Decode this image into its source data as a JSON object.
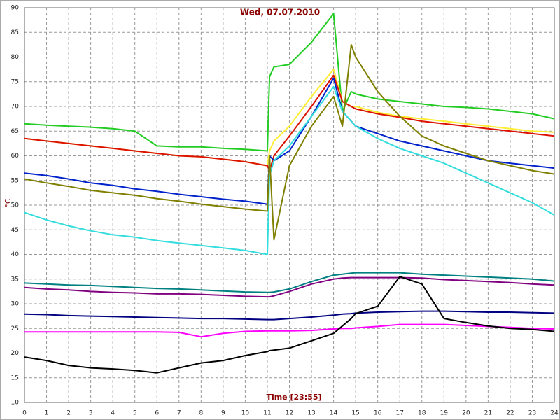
{
  "chart_data": {
    "type": "line",
    "title": "Wed, 07.07.2010",
    "y_label": "°C",
    "x_label": "Time [23:55]",
    "x": [
      0,
      1,
      2,
      3,
      4,
      5,
      6,
      7,
      8,
      9,
      10,
      11,
      11.1,
      11.3,
      12,
      13,
      14,
      14.4,
      14.8,
      15,
      16,
      17,
      18,
      19,
      20,
      21,
      22,
      23,
      24
    ],
    "xlim": [
      0,
      24
    ],
    "xticks": [
      0,
      1,
      2,
      3,
      4,
      5,
      6,
      7,
      8,
      9,
      10,
      11,
      12,
      13,
      14,
      15,
      16,
      17,
      18,
      19,
      20,
      21,
      22,
      23,
      24
    ],
    "ylim": [
      10,
      90
    ],
    "yticks": [
      10,
      15,
      20,
      25,
      30,
      35,
      40,
      45,
      50,
      55,
      60,
      65,
      70,
      75,
      80,
      85,
      90
    ],
    "grid": true,
    "series": [
      {
        "color": "#22cc22",
        "values": [
          66.5,
          66.2,
          66,
          65.8,
          65.5,
          65,
          62,
          61.8,
          61.8,
          61.5,
          61.3,
          61,
          76,
          78,
          78.5,
          83,
          88.8,
          69,
          73,
          72.5,
          71.5,
          71,
          70.5,
          70,
          69.8,
          69.5,
          69,
          68.5,
          67.5
        ]
      },
      {
        "color": "#ffee33",
        "values": [
          63.5,
          63,
          62.5,
          62,
          61.5,
          61,
          60.5,
          60,
          59.8,
          59.3,
          58.8,
          58,
          61,
          63,
          66,
          72,
          77.5,
          71,
          70,
          70,
          68.8,
          68,
          67.5,
          67,
          66.5,
          66,
          65.5,
          65,
          64.8
        ]
      },
      {
        "color": "#dd1100",
        "values": [
          63.5,
          63,
          62.5,
          62,
          61.5,
          61,
          60.5,
          60,
          59.8,
          59.3,
          58.8,
          58,
          57,
          60,
          64,
          70,
          76.3,
          71,
          70,
          69.5,
          68.5,
          67.8,
          67,
          66.5,
          66,
          65.5,
          65,
          64.5,
          64
        ]
      },
      {
        "color": "#0022cc",
        "values": [
          56.5,
          56,
          55.3,
          54.5,
          54,
          53.3,
          52.8,
          52.2,
          51.7,
          51.2,
          50.8,
          50.2,
          60,
          59,
          61,
          68,
          75.7,
          69,
          67,
          66,
          64.5,
          63,
          62,
          61,
          60,
          59,
          58.5,
          58,
          57.5
        ]
      },
      {
        "color": "#33dddd",
        "values": [
          48.5,
          47,
          45.8,
          44.8,
          44,
          43.5,
          42.8,
          42.3,
          41.8,
          41.3,
          40.8,
          40,
          56,
          59,
          62,
          68,
          74,
          69,
          67,
          66,
          63.5,
          61.5,
          60,
          58.5,
          56.5,
          54.5,
          52.5,
          50.5,
          48
        ]
      },
      {
        "color": "#808000",
        "values": [
          55.3,
          54.5,
          53.8,
          53,
          52.5,
          52,
          51.3,
          50.8,
          50.2,
          49.7,
          49.2,
          48.8,
          60,
          43,
          58,
          66,
          72,
          66,
          82.5,
          80,
          73,
          68,
          64,
          62,
          60.5,
          59,
          58,
          57,
          56.3
        ]
      },
      {
        "color": "#008080",
        "values": [
          34.2,
          34,
          33.8,
          33.7,
          33.5,
          33.3,
          33.1,
          33,
          32.8,
          32.6,
          32.4,
          32.3,
          32.3,
          32.4,
          33,
          34.5,
          35.8,
          36,
          36.2,
          36.3,
          36.3,
          36.3,
          36,
          35.8,
          35.6,
          35.4,
          35.2,
          35,
          34.6
        ]
      },
      {
        "color": "#800080",
        "values": [
          33.3,
          33,
          32.8,
          32.5,
          32.3,
          32.2,
          32,
          32,
          31.9,
          31.7,
          31.5,
          31.4,
          31.4,
          31.6,
          32.5,
          34,
          35,
          35.2,
          35.3,
          35.3,
          35.3,
          35.3,
          35.2,
          34.9,
          34.7,
          34.5,
          34.3,
          34,
          33.8
        ]
      },
      {
        "color": "#000080",
        "values": [
          27.9,
          27.8,
          27.6,
          27.5,
          27.4,
          27.3,
          27.2,
          27.1,
          27,
          27,
          26.9,
          26.8,
          26.8,
          26.8,
          27,
          27.3,
          27.7,
          27.9,
          28,
          28.1,
          28.3,
          28.4,
          28.5,
          28.5,
          28.4,
          28.3,
          28.3,
          28.2,
          28.1
        ]
      },
      {
        "color": "#ff00ff",
        "values": [
          24.3,
          24.3,
          24.3,
          24.3,
          24.3,
          24.3,
          24.3,
          24.2,
          23.3,
          24,
          24.4,
          24.5,
          24.5,
          24.5,
          24.5,
          24.6,
          24.9,
          25,
          25,
          25.1,
          25.4,
          25.8,
          25.8,
          25.8,
          25.6,
          25.4,
          25.2,
          25,
          24.9
        ]
      },
      {
        "color": "#000000",
        "values": [
          19.2,
          18.5,
          17.5,
          17,
          16.8,
          16.5,
          16,
          17,
          18,
          18.5,
          19.5,
          20.3,
          20.5,
          20.6,
          21,
          22.5,
          24,
          25.5,
          27,
          28,
          29.5,
          35.5,
          34,
          27,
          26.2,
          25.5,
          25,
          24.8,
          24.4
        ]
      }
    ]
  }
}
